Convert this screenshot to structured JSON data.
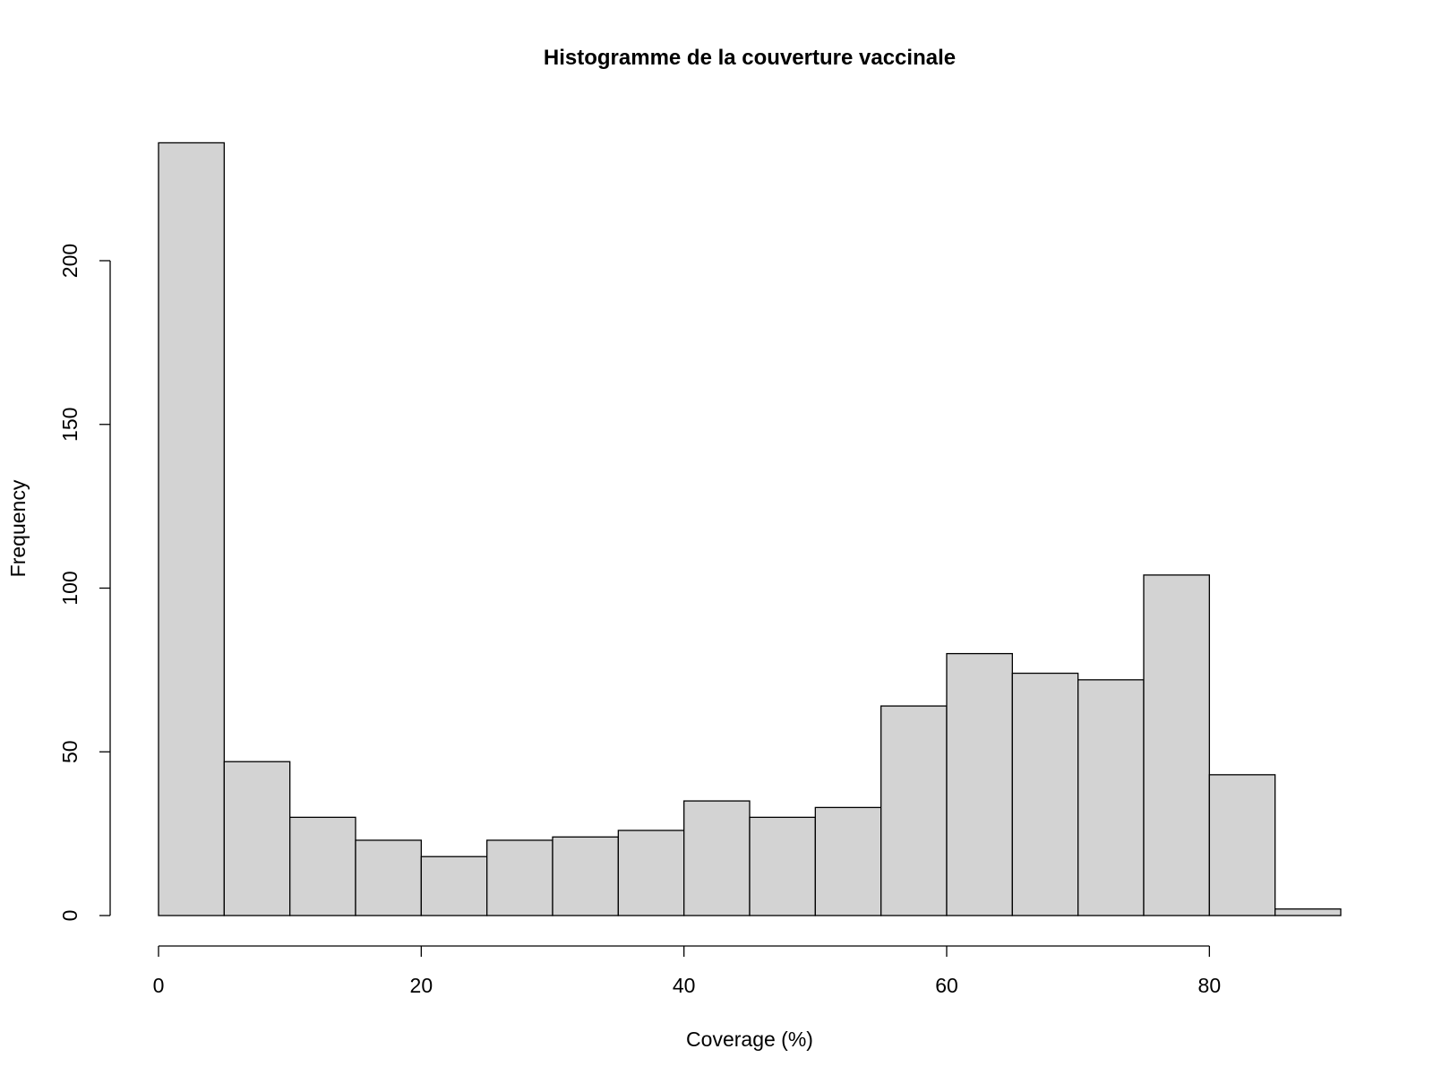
{
  "chart_data": {
    "type": "bar",
    "title": "Histogramme de la couverture vaccinale",
    "xlabel": "Coverage (%)",
    "ylabel": "Frequency",
    "bin_edges": [
      0,
      5,
      10,
      15,
      20,
      25,
      30,
      35,
      40,
      45,
      50,
      55,
      60,
      65,
      70,
      75,
      80,
      85,
      90
    ],
    "values": [
      236,
      47,
      30,
      23,
      18,
      23,
      24,
      26,
      35,
      30,
      33,
      64,
      80,
      74,
      72,
      104,
      43,
      2
    ],
    "xlim": [
      0,
      90
    ],
    "ylim": [
      0,
      236
    ],
    "x_ticks": [
      0,
      20,
      40,
      60,
      80
    ],
    "y_ticks": [
      0,
      50,
      100,
      150,
      200
    ],
    "bar_color": "#d3d3d3",
    "grid": false
  }
}
